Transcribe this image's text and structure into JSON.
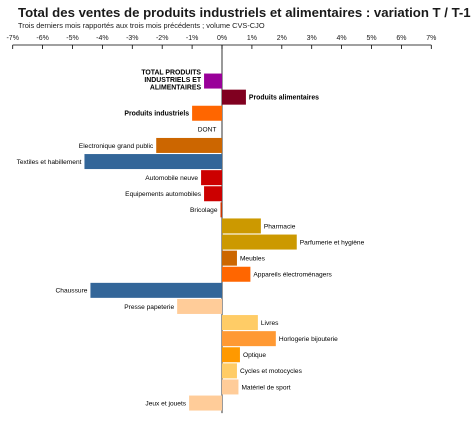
{
  "chart_data": {
    "type": "bar",
    "orientation": "horizontal",
    "title": "Total des ventes de produits industriels et alimentaires : variation T / T-1",
    "subtitle": "Trois derniers mois rapportés aux trois mois précédents ; volume CVS-CJO",
    "xlim": [
      -7,
      7
    ],
    "x_ticks": [
      "-7%",
      "-6%",
      "-5%",
      "-4%",
      "-3%",
      "-2%",
      "-1%",
      "0%",
      "1%",
      "2%",
      "3%",
      "4%",
      "5%",
      "6%",
      "7%"
    ],
    "grid": false,
    "legend": "none",
    "categories": [
      {
        "label": "TOTAL PRODUITS INDUSTRIELS ET ALIMENTAIRES",
        "lines": [
          "TOTAL PRODUITS",
          "INDUSTRIELS ET",
          "ALIMENTAIRES"
        ],
        "value": -0.6,
        "color": "#990099",
        "bold": true
      },
      {
        "label": "Produits alimentaires",
        "value": 0.8,
        "color": "#800020",
        "bold": true
      },
      {
        "label": "Produits industriels",
        "value": -1.0,
        "color": "#ff6600",
        "bold": true
      },
      {
        "label": "DONT",
        "value": 0,
        "color": "#ffffff",
        "bold": false
      },
      {
        "label": "Electronique grand public",
        "value": -2.2,
        "color": "#cc6600",
        "bold": false
      },
      {
        "label": "Textiles et habillement",
        "value": -4.6,
        "color": "#336699",
        "bold": false
      },
      {
        "label": "Automobile neuve",
        "value": -0.7,
        "color": "#cc0000",
        "bold": false
      },
      {
        "label": "Equipements automobiles",
        "value": -0.6,
        "color": "#cc0000",
        "bold": false
      },
      {
        "label": "Bricolage",
        "value": -0.05,
        "color": "#cc3300",
        "bold": false
      },
      {
        "label": "Pharmacie",
        "value": 1.3,
        "color": "#cc9900",
        "bold": false
      },
      {
        "label": "Parfumerie et hygiène",
        "value": 2.5,
        "color": "#cc9900",
        "bold": false
      },
      {
        "label": "Meubles",
        "value": 0.5,
        "color": "#cc6600",
        "bold": false
      },
      {
        "label": "Appareils électroménagers",
        "value": 0.95,
        "color": "#ff6600",
        "bold": false
      },
      {
        "label": "Chaussure",
        "value": -4.4,
        "color": "#336699",
        "bold": false
      },
      {
        "label": "Presse papeterie",
        "value": -1.5,
        "color": "#ffcc99",
        "bold": false
      },
      {
        "label": "Livres",
        "value": 1.2,
        "color": "#ffcc66",
        "bold": false
      },
      {
        "label": "Horlogerie bijouterie",
        "value": 1.8,
        "color": "#ff9933",
        "bold": false
      },
      {
        "label": "Optique",
        "value": 0.6,
        "color": "#ff9900",
        "bold": false
      },
      {
        "label": "Cycles et motocycles",
        "value": 0.5,
        "color": "#ffcc66",
        "bold": false
      },
      {
        "label": "Matériel de sport",
        "value": 0.55,
        "color": "#ffcc99",
        "bold": false
      },
      {
        "label": "Jeux et jouets",
        "value": -1.1,
        "color": "#ffcc99",
        "bold": false
      }
    ]
  }
}
